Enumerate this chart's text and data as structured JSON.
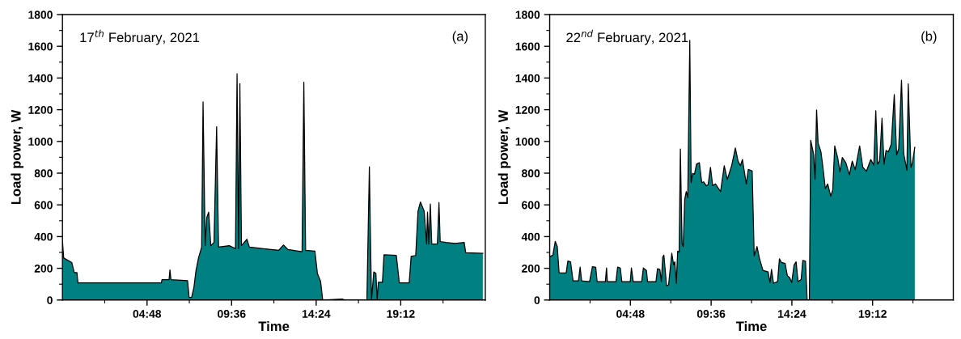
{
  "chart_data": [
    {
      "type": "area",
      "xlabel": "Time",
      "ylabel": "Load power, W",
      "annotations": [
        "17$^{th}$ February, 2021",
        "(a)"
      ],
      "xlim": [
        0,
        24
      ],
      "ylim": [
        0,
        1800
      ],
      "xticks": [
        {
          "value": 2.4,
          "label": null
        },
        {
          "value": 4.8,
          "label": "04:48"
        },
        {
          "value": 7.2,
          "label": null
        },
        {
          "value": 9.6,
          "label": "09:36"
        },
        {
          "value": 12,
          "label": null
        },
        {
          "value": 14.4,
          "label": "14:24"
        },
        {
          "value": 16.8,
          "label": null
        },
        {
          "value": 19.2,
          "label": "19:12"
        },
        {
          "value": 21.6,
          "label": null
        }
      ],
      "yticks": [
        0,
        {
          "value": 100,
          "label": null
        },
        200,
        {
          "value": 300,
          "label": null
        },
        400,
        {
          "value": 500,
          "label": null
        },
        600,
        {
          "value": 700,
          "label": null
        },
        800,
        {
          "value": 900,
          "label": null
        },
        1000,
        {
          "value": 1100,
          "label": null
        },
        1200,
        {
          "value": 1300,
          "label": null
        },
        1400,
        {
          "value": 1500,
          "label": null
        },
        1600,
        {
          "value": 1700,
          "label": null
        },
        1800
      ],
      "grid": false,
      "legend": false,
      "series": [
        {
          "color": "#008080",
          "x": [
            0,
            0.07,
            0.53,
            0.67,
            0.82,
            0.88,
            5.61,
            5.65,
            6.05,
            6.1,
            6.16,
            7.1,
            7.19,
            7.33,
            7.46,
            7.58,
            7.72,
            7.9,
            7.98,
            8.1,
            8.19,
            8.3,
            8.42,
            8.6,
            8.75,
            8.86,
            9.47,
            9.82,
            9.91,
            10.0,
            10.07,
            10.16,
            10.47,
            10.61,
            11.4,
            12.28,
            12.54,
            12.8,
            13.6,
            13.7,
            13.8,
            14.33,
            14.47,
            14.65,
            14.77,
            15.87,
            16.05,
            17.28,
            17.42,
            17.54,
            17.67,
            17.79,
            17.86,
            17.93,
            18.16,
            18.25,
            18.95,
            19.12,
            19.68,
            19.79,
            20.05,
            20.18,
            20.32,
            20.53,
            20.67,
            20.72,
            20.79,
            20.88,
            20.96,
            21.28,
            21.37,
            21.44,
            21.75,
            22.28,
            22.8,
            22.89,
            23.86
          ],
          "values": [
            373,
            265,
            236,
            173,
            173,
            108,
            108,
            128,
            128,
            190,
            128,
            122,
            16,
            16,
            79,
            186,
            265,
            334,
            1250,
            343,
            520,
            554,
            343,
            363,
            1093,
            334,
            343,
            324,
            1427,
            324,
            1364,
            343,
            383,
            334,
            324,
            314,
            347,
            318,
            304,
            1374,
            314,
            308,
            167,
            118,
            0,
            6,
            0,
            0,
            840,
            0,
            177,
            167,
            0,
            112,
            112,
            285,
            281,
            108,
            108,
            275,
            281,
            560,
            618,
            560,
            353,
            554,
            353,
            605,
            353,
            353,
            614,
            369,
            363,
            357,
            363,
            298,
            294
          ]
        }
      ]
    },
    {
      "type": "area",
      "xlabel": "Time",
      "ylabel": "Load power, W",
      "annotations": [
        "22$^{nd}$ February, 2021",
        "(b)"
      ],
      "xlim": [
        0,
        24
      ],
      "ylim": [
        0,
        1800
      ],
      "xticks": [
        {
          "value": 2.4,
          "label": null
        },
        {
          "value": 4.8,
          "label": "04:48"
        },
        {
          "value": 7.2,
          "label": null
        },
        {
          "value": 9.6,
          "label": "09:36"
        },
        {
          "value": 12,
          "label": null
        },
        {
          "value": 14.4,
          "label": "14:24"
        },
        {
          "value": 16.8,
          "label": null
        },
        {
          "value": 19.2,
          "label": "19:12"
        },
        {
          "value": 21.6,
          "label": null
        }
      ],
      "yticks": [
        0,
        {
          "value": 100,
          "label": null
        },
        200,
        {
          "value": 300,
          "label": null
        },
        400,
        {
          "value": 500,
          "label": null
        },
        600,
        {
          "value": 700,
          "label": null
        },
        800,
        {
          "value": 900,
          "label": null
        },
        1000,
        {
          "value": 1100,
          "label": null
        },
        1200,
        {
          "value": 1300,
          "label": null
        },
        1400,
        {
          "value": 1500,
          "label": null
        },
        1600,
        {
          "value": 1700,
          "label": null
        },
        1800
      ],
      "grid": false,
      "legend": false,
      "series": [
        {
          "color": "#008080",
          "x": [
            0,
            0.19,
            0.33,
            0.45,
            0.56,
            0.98,
            1.08,
            1.24,
            1.39,
            1.71,
            1.81,
            1.9,
            2.37,
            2.54,
            2.74,
            2.82,
            3.31,
            3.38,
            3.43,
            3.94,
            4.04,
            4.2,
            4.29,
            4.79,
            4.86,
            4.97,
            5.47,
            5.57,
            5.75,
            5.82,
            6.32,
            6.41,
            6.55,
            6.64,
            6.72,
            6.79,
            6.95,
            7.07,
            7.26,
            7.37,
            7.44,
            7.53,
            7.61,
            7.7,
            7.77,
            7.87,
            7.94,
            8.03,
            8.12,
            8.21,
            8.33,
            8.41,
            8.5,
            8.61,
            8.73,
            8.9,
            9.04,
            9.16,
            9.3,
            9.42,
            9.56,
            9.69,
            9.86,
            10.16,
            10.38,
            10.56,
            10.82,
            11.04,
            11.2,
            11.34,
            11.46,
            11.69,
            11.81,
            12.04,
            12.16,
            12.33,
            12.47,
            12.68,
            12.99,
            13.1,
            13.19,
            13.31,
            13.55,
            13.66,
            13.78,
            14.0,
            14.13,
            14.27,
            14.39,
            14.53,
            14.65,
            14.77,
            14.95,
            15.05,
            15.21,
            15.31,
            15.44,
            15.52,
            15.7,
            15.78,
            15.87,
            15.96,
            16.13,
            16.27,
            16.39,
            16.53,
            16.71,
            16.83,
            16.95,
            17.13,
            17.26,
            17.4,
            17.61,
            17.82,
            17.99,
            18.17,
            18.43,
            18.62,
            18.83,
            19.09,
            19.27,
            19.39,
            19.5,
            19.62,
            19.76,
            19.88,
            20.0,
            20.14,
            20.31,
            20.49,
            20.63,
            20.75,
            20.92,
            21.05,
            21.24,
            21.32,
            21.48,
            21.57,
            21.71
          ],
          "values": [
            273,
            283,
            370,
            337,
            171,
            171,
            246,
            241,
            121,
            121,
            208,
            121,
            116,
            210,
            206,
            116,
            116,
            202,
            116,
            116,
            208,
            202,
            116,
            116,
            202,
            116,
            116,
            202,
            187,
            116,
            116,
            198,
            193,
            116,
            270,
            283,
            90,
            96,
            295,
            221,
            241,
            106,
            308,
            302,
            953,
            356,
            337,
            635,
            684,
            645,
            1637,
            741,
            799,
            793,
            857,
            866,
            741,
            745,
            722,
            726,
            837,
            722,
            732,
            684,
            847,
            760,
            847,
            959,
            876,
            847,
            886,
            732,
            824,
            814,
            279,
            337,
            264,
            187,
            177,
            110,
            193,
            106,
            116,
            260,
            237,
            231,
            154,
            141,
            110,
            221,
            241,
            116,
            129,
            250,
            245,
            0,
            0,
            1007,
            915,
            760,
            1199,
            991,
            934,
            818,
            703,
            732,
            655,
            693,
            972,
            895,
            809,
            899,
            866,
            789,
            876,
            822,
            972,
            837,
            812,
            886,
            851,
            1194,
            857,
            876,
            1146,
            857,
            943,
            934,
            982,
            1296,
            915,
            953,
            1386,
            924,
            818,
            1363,
            837,
            866,
            963
          ]
        }
      ]
    }
  ]
}
